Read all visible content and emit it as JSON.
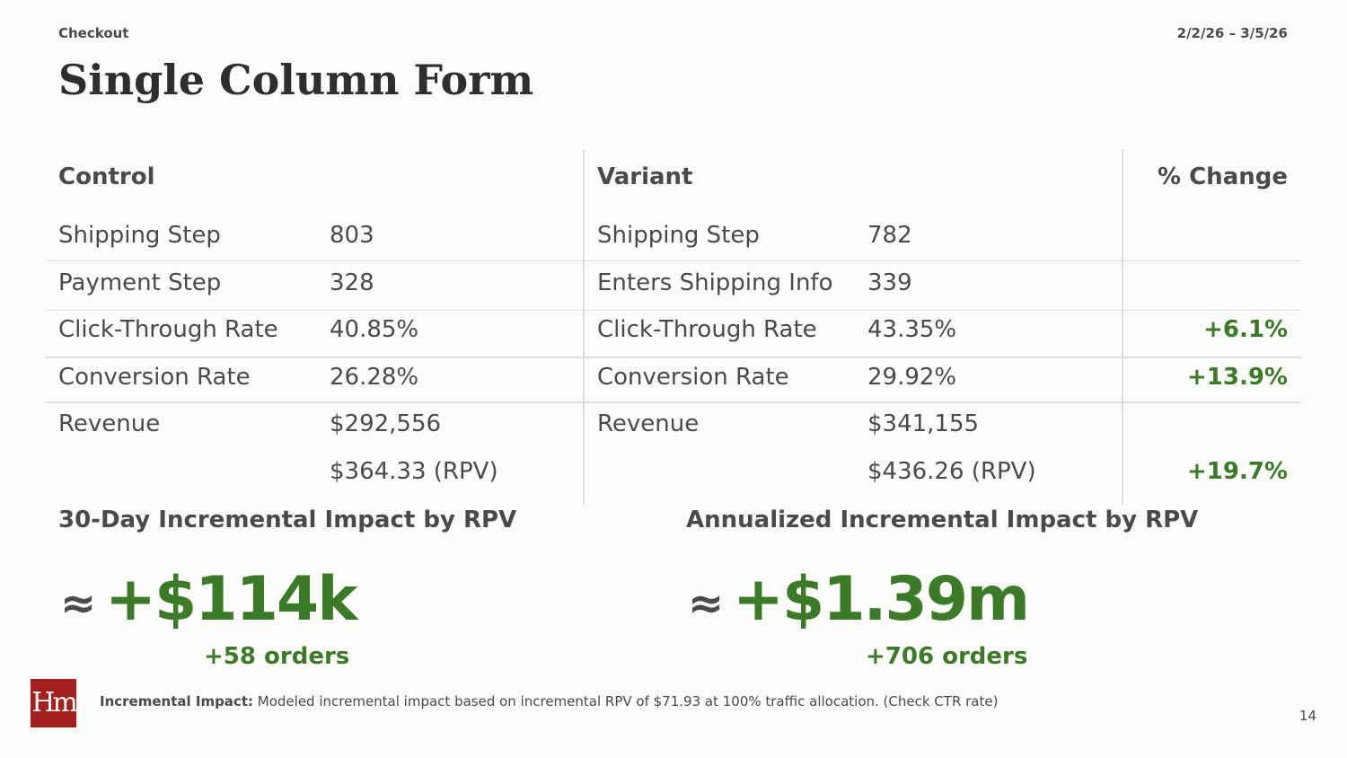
{
  "header": {
    "section": "Checkout",
    "date": "2/2/26 – 3/5/26",
    "title": "Single Column Form"
  },
  "table": {
    "headers": [
      "Control",
      "Variant",
      "% Change"
    ],
    "rows": [
      [
        "Shipping Step",
        "803",
        "Shipping Step",
        "782",
        null
      ],
      [
        "Payment Step",
        "328",
        "Enters Shipping Info",
        "339",
        null
      ],
      [
        "Click-Through Rate",
        "40.85%",
        "Click-Through Rate",
        "43.35%",
        "+6.1%"
      ],
      [
        "Conversion Rate",
        "26.28%",
        "Conversion Rate",
        "29.92%",
        "+13.9%"
      ],
      [
        "Revenue",
        "$292,556",
        "Revenue",
        "$341,155",
        null
      ],
      [
        null,
        "$364.33 (RPV)",
        null,
        "$436.26 (RPV)",
        "+19.7%"
      ]
    ]
  },
  "impacts": [
    {
      "title": "30-Day Incremental Impact by RPV",
      "approx": "≈",
      "value": "+$114k",
      "orders": "+58 orders"
    },
    {
      "title": "Annualized Incremental Impact by RPV",
      "approx": "≈",
      "value": "+$1.39m",
      "orders": "+706 orders"
    }
  ],
  "footer": {
    "logo": "Hm",
    "note_label": "Incremental Impact:",
    "note": "Modeled incremental impact based on incremental RPV of $71.93 at 100% traffic allocation. (Check CTR rate)",
    "page": "14"
  }
}
